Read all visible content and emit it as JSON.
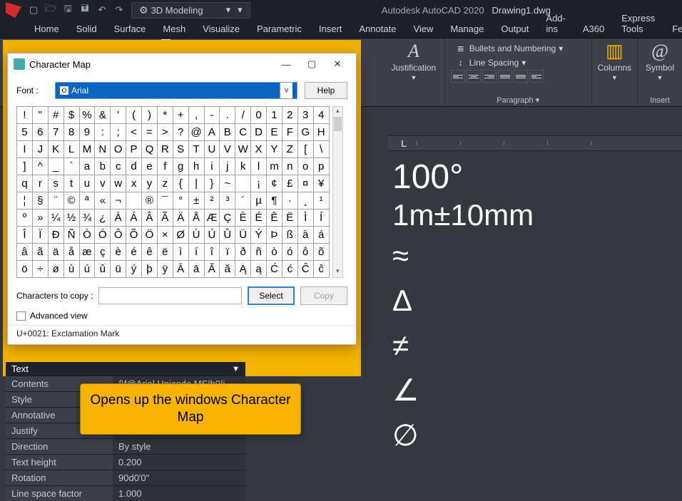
{
  "colors": {
    "app_bg": "#34383f",
    "ribbon_bg": "#3b4049",
    "dark_bar": "#1e2228",
    "highlight_border": "#f0b000",
    "callout_bg": "#f6b400",
    "callout_border": "#b07e00",
    "font_select_bg": "#0a64c2"
  },
  "qat": {
    "workspace": "3D Modeling",
    "app_title": "Autodesk AutoCAD 2020",
    "file_name": "Drawing1.dwg"
  },
  "ribbon_tabs": [
    "Home",
    "Solid",
    "Surface",
    "Mesh",
    "Visualize",
    "Parametric",
    "Insert",
    "Annotate",
    "View",
    "Manage",
    "Output",
    "Add-ins",
    "A360",
    "Express Tools",
    "Feat"
  ],
  "ribbon": {
    "justification_label": "Justification",
    "bullets_label": "Bullets and Numbering",
    "linespacing_label": "Line Spacing",
    "paragraph_group": "Paragraph",
    "columns_label": "Columns",
    "symbol_label": "Symbol",
    "insert_group": "Insert"
  },
  "anno": {
    "annotative": "Annotative",
    "arial_unicode": "@Arial Unicode MS"
  },
  "charmap": {
    "title": "Character Map",
    "font_label": "Font :",
    "font_value": "Arial",
    "help": "Help",
    "rows": [
      [
        "!",
        "\"",
        "#",
        "$",
        "%",
        "&",
        "'",
        "(",
        ")",
        "*",
        "+",
        ",",
        "-",
        ".",
        "/",
        "0",
        "1",
        "2",
        "3",
        "4"
      ],
      [
        "5",
        "6",
        "7",
        "8",
        "9",
        ":",
        ";",
        "<",
        "=",
        ">",
        "?",
        "@",
        "A",
        "B",
        "C",
        "D",
        "E",
        "F",
        "G",
        "H"
      ],
      [
        "I",
        "J",
        "K",
        "L",
        "M",
        "N",
        "O",
        "P",
        "Q",
        "R",
        "S",
        "T",
        "U",
        "V",
        "W",
        "X",
        "Y",
        "Z",
        "[",
        "\\"
      ],
      [
        "]",
        "^",
        "_",
        "`",
        "a",
        "b",
        "c",
        "d",
        "e",
        "f",
        "g",
        "h",
        "i",
        "j",
        "k",
        "l",
        "m",
        "n",
        "o",
        "p"
      ],
      [
        "q",
        "r",
        "s",
        "t",
        "u",
        "v",
        "w",
        "x",
        "y",
        "z",
        "{",
        "|",
        "}",
        "~",
        "",
        "¡",
        "¢",
        "£",
        "¤",
        "¥"
      ],
      [
        "¦",
        "§",
        "¨",
        "©",
        "ª",
        "«",
        "¬",
        "­",
        "®",
        "¯",
        "°",
        "±",
        "²",
        "³",
        "´",
        "µ",
        "¶",
        "·",
        "¸",
        "¹"
      ],
      [
        "º",
        "»",
        "¼",
        "½",
        "¾",
        "¿",
        "À",
        "Á",
        "Â",
        "Ã",
        "Ä",
        "Å",
        "Æ",
        "Ç",
        "È",
        "É",
        "Ê",
        "Ë",
        "Ì",
        "Í"
      ],
      [
        "Î",
        "Ï",
        "Ð",
        "Ñ",
        "Ò",
        "Ó",
        "Ô",
        "Õ",
        "Ö",
        "×",
        "Ø",
        "Ù",
        "Ú",
        "Û",
        "Ü",
        "Ý",
        "Þ",
        "ß",
        "à",
        "á"
      ],
      [
        "â",
        "ã",
        "ä",
        "å",
        "æ",
        "ç",
        "è",
        "é",
        "ê",
        "ë",
        "ì",
        "í",
        "î",
        "ï",
        "ð",
        "ñ",
        "ò",
        "ó",
        "ô",
        "õ"
      ],
      [
        "ö",
        "÷",
        "ø",
        "ù",
        "ú",
        "û",
        "ü",
        "ý",
        "þ",
        "ÿ",
        "Ā",
        "ā",
        "Ă",
        "ă",
        "Ą",
        "ą",
        "Ć",
        "ć",
        "Ĉ",
        "ĉ"
      ]
    ],
    "chars_to_copy_label": "Characters to copy :",
    "select": "Select",
    "copy": "Copy",
    "advanced_view": "Advanced view",
    "status": "U+0021: Exclamation Mark"
  },
  "canvas": {
    "line1": "100°",
    "line2": "1m±10mm",
    "symbols": [
      "≈",
      "Δ",
      "≠",
      "∠",
      "∅"
    ]
  },
  "properties": {
    "section": "Text",
    "rows": [
      {
        "k": "Contents",
        "v": "{\\f@Arial Unicode MS|b0|i..."
      },
      {
        "k": "Style",
        "v": ""
      },
      {
        "k": "Annotative",
        "v": ""
      },
      {
        "k": "Justify",
        "v": ""
      },
      {
        "k": "Direction",
        "v": "By style"
      },
      {
        "k": "Text height",
        "v": "0.200"
      },
      {
        "k": "Rotation",
        "v": "90d0'0\""
      },
      {
        "k": "Line space factor",
        "v": "1.000"
      }
    ]
  },
  "callout": {
    "text": "Opens up the windows Character Map"
  }
}
